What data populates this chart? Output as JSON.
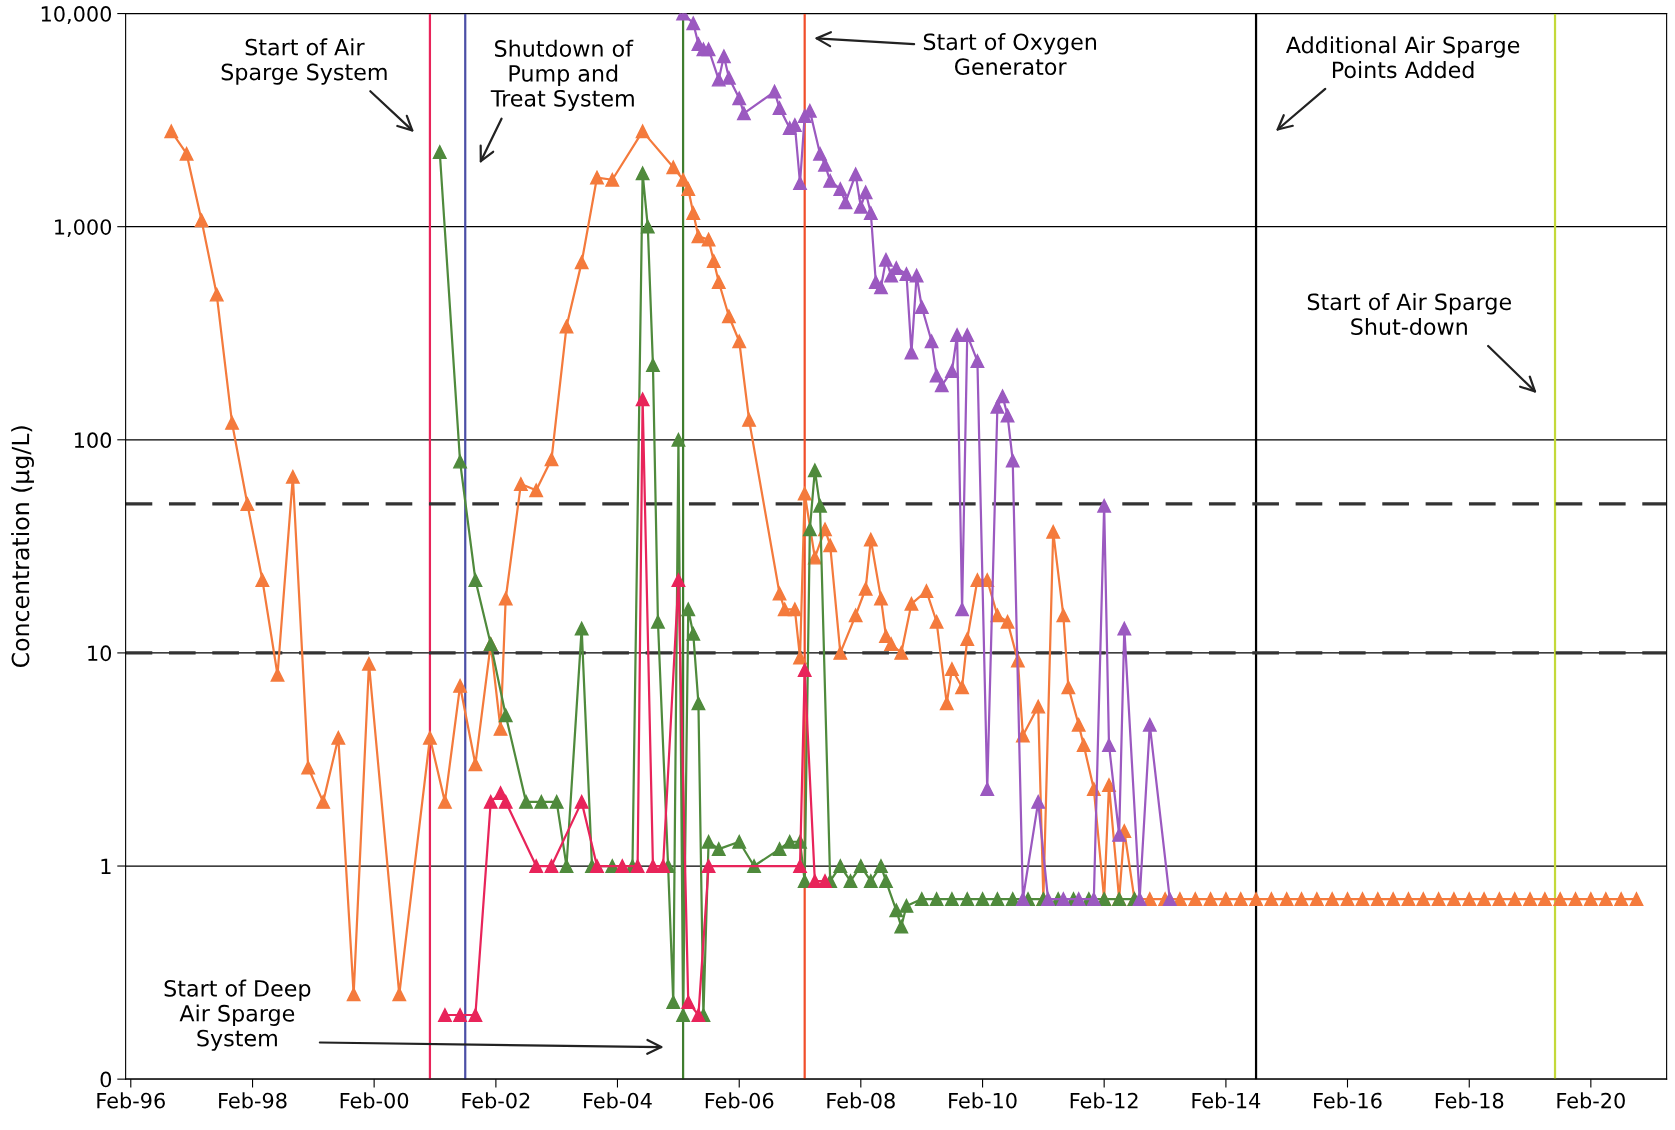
{
  "chart_data": {
    "type": "line",
    "ylabel": "Concentration (µg/L)",
    "log": "y",
    "grid": "y",
    "marker": "triangle",
    "line_style": "solid",
    "xlim": [
      "1996-01",
      "2021-05"
    ],
    "xticks": [
      {
        "value": "1996-02",
        "label": "Feb-96"
      },
      {
        "value": "1998-02",
        "label": "Feb-98"
      },
      {
        "value": "2000-02",
        "label": "Feb-00"
      },
      {
        "value": "2002-02",
        "label": "Feb-02"
      },
      {
        "value": "2004-02",
        "label": "Feb-04"
      },
      {
        "value": "2006-02",
        "label": "Feb-06"
      },
      {
        "value": "2008-02",
        "label": "Feb-08"
      },
      {
        "value": "2010-02",
        "label": "Feb-10"
      },
      {
        "value": "2012-02",
        "label": "Feb-12"
      },
      {
        "value": "2014-02",
        "label": "Feb-14"
      },
      {
        "value": "2016-02",
        "label": "Feb-16"
      },
      {
        "value": "2018-02",
        "label": "Feb-18"
      },
      {
        "value": "2020-02",
        "label": "Feb-20"
      }
    ],
    "ylim": [
      0.1,
      10000
    ],
    "yticks": [
      {
        "value": 0.1,
        "label": "0"
      },
      1,
      10,
      100,
      {
        "value": 1000,
        "label": "1,000"
      },
      {
        "value": 10000,
        "label": "10,000"
      }
    ],
    "series": [
      {
        "color": "#f47a3c",
        "x": [
          "1996-10",
          "1997-01",
          "1997-04",
          "1997-07",
          "1997-10",
          "1998-01",
          "1998-04",
          "1998-07",
          "1998-10",
          "1999-01",
          "1999-04",
          "1999-07",
          "1999-10",
          "2000-01",
          "2000-07",
          "2001-01",
          "2001-04",
          "2001-07",
          "2001-10",
          "2002-01",
          "2002-03",
          "2002-04",
          "2002-07",
          "2002-10",
          "2003-01",
          "2003-04",
          "2003-07",
          "2003-10",
          "2004-01",
          "2004-07",
          "2005-01",
          "2005-03",
          "2005-04",
          "2005-05",
          "2005-06",
          "2005-08",
          "2005-09",
          "2005-10",
          "2005-12",
          "2006-02",
          "2006-04",
          "2006-10",
          "2006-11",
          "2007-01",
          "2007-02",
          "2007-03",
          "2007-05",
          "2007-07",
          "2007-08",
          "2007-10",
          "2008-01",
          "2008-03",
          "2008-04",
          "2008-06",
          "2008-07",
          "2008-08",
          "2008-10",
          "2008-12",
          "2009-03",
          "2009-05",
          "2009-07",
          "2009-08",
          "2009-10",
          "2009-11",
          "2010-01",
          "2010-03",
          "2010-05",
          "2010-07",
          "2010-09",
          "2010-10",
          "2011-01",
          "2011-02",
          "2011-04",
          "2011-06",
          "2011-07",
          "2011-09",
          "2011-10",
          "2011-12",
          "2012-02",
          "2012-03",
          "2012-05",
          "2012-06",
          "2012-08",
          "2012-11",
          "2013-02",
          "2013-05",
          "2013-08",
          "2013-11",
          "2014-02",
          "2014-05",
          "2014-08",
          "2014-11",
          "2015-02",
          "2015-05",
          "2015-08",
          "2015-11",
          "2016-02",
          "2016-05",
          "2016-08",
          "2016-11",
          "2017-02",
          "2017-05",
          "2017-08",
          "2017-11",
          "2018-02",
          "2018-05",
          "2018-08",
          "2018-11",
          "2019-02",
          "2019-05",
          "2019-08",
          "2019-11",
          "2020-02",
          "2020-05",
          "2020-08",
          "2020-11"
        ],
        "values": [
          2800,
          2200,
          1070,
          480,
          120,
          50,
          22,
          7.9,
          67,
          2.9,
          2.0,
          4.0,
          0.25,
          8.9,
          0.25,
          4.0,
          2.0,
          7.0,
          3.0,
          11,
          4.4,
          18,
          62,
          58,
          81,
          340,
          680,
          1700,
          1660,
          2800,
          1900,
          1660,
          1500,
          1160,
          900,
          870,
          690,
          550,
          380,
          290,
          124,
          19,
          16,
          16,
          9.5,
          56,
          28,
          38,
          32,
          10,
          15,
          20,
          34,
          18,
          12,
          11,
          10,
          17,
          19.5,
          14,
          5.8,
          8.4,
          6.9,
          11.6,
          22,
          22,
          15,
          14,
          9.2,
          4.1,
          5.6,
          0.7,
          37,
          15,
          6.9,
          4.6,
          3.7,
          2.3,
          0.7,
          2.4,
          0.7,
          1.46,
          0.7,
          0.7,
          0.7,
          0.7,
          0.7,
          0.7,
          0.7,
          0.7,
          0.7,
          0.7,
          0.7,
          0.7,
          0.7,
          0.7,
          0.7,
          0.7,
          0.7,
          0.7,
          0.7,
          0.7,
          0.7,
          0.7,
          0.7,
          0.7,
          0.7,
          0.7,
          0.7,
          0.7,
          0.7,
          0.7,
          0.7,
          0.7,
          0.7,
          0.7
        ]
      },
      {
        "color": "#4f8a3c",
        "x": [
          "2001-03",
          "2001-07",
          "2001-10",
          "2002-01",
          "2002-04",
          "2002-08",
          "2002-11",
          "2003-02",
          "2003-04",
          "2003-07",
          "2003-09",
          "2004-01",
          "2004-05",
          "2004-07",
          "2004-08",
          "2004-09",
          "2004-10",
          "2004-12",
          "2005-01",
          "2005-02",
          "2005-03",
          "2005-04",
          "2005-05",
          "2005-06",
          "2005-07",
          "2005-08",
          "2005-10",
          "2006-02",
          "2006-05",
          "2006-10",
          "2006-12",
          "2007-02",
          "2007-03",
          "2007-04",
          "2007-05",
          "2007-06",
          "2007-08",
          "2007-10",
          "2007-12",
          "2008-02",
          "2008-04",
          "2008-06",
          "2008-07",
          "2008-09",
          "2008-10",
          "2008-11",
          "2009-02",
          "2009-05",
          "2009-08",
          "2009-11",
          "2010-02",
          "2010-05",
          "2010-08",
          "2010-11",
          "2011-02",
          "2011-05",
          "2011-08",
          "2011-11",
          "2012-02",
          "2012-05",
          "2012-08"
        ],
        "values": [
          2240,
          79,
          22,
          11,
          5.1,
          2.0,
          2.0,
          2.0,
          1.0,
          13,
          1.0,
          1.0,
          1.0,
          1780,
          1000,
          224,
          14,
          1.0,
          0.23,
          100,
          0.2,
          16,
          12.3,
          5.8,
          0.2,
          1.3,
          1.2,
          1.3,
          1.0,
          1.2,
          1.3,
          1.3,
          0.85,
          38,
          72,
          49,
          0.85,
          1.0,
          0.85,
          1.0,
          0.85,
          1.0,
          0.85,
          0.62,
          0.52,
          0.65,
          0.7,
          0.7,
          0.7,
          0.7,
          0.7,
          0.7,
          0.7,
          0.7,
          0.7,
          0.7,
          0.7,
          0.7,
          0.7,
          0.7,
          0.7
        ]
      },
      {
        "color": "#e8245a",
        "x": [
          "2001-04",
          "2001-07",
          "2001-10",
          "2002-01",
          "2002-03",
          "2002-04",
          "2002-10",
          "2003-01",
          "2003-07",
          "2003-10",
          "2004-03",
          "2004-06",
          "2004-07",
          "2004-09",
          "2004-11",
          "2005-02",
          "2005-04",
          "2005-06",
          "2005-08",
          "2007-02",
          "2007-03",
          "2007-05",
          "2007-07"
        ],
        "values": [
          0.2,
          0.2,
          0.2,
          2.0,
          2.2,
          2.0,
          1.0,
          1.0,
          2.0,
          1.0,
          1.0,
          1.0,
          155,
          1.0,
          1.0,
          22,
          0.23,
          0.2,
          1.0,
          1.0,
          8.3,
          0.85,
          0.85
        ]
      },
      {
        "color": "#9b59c0",
        "x": [
          "2005-03",
          "2005-05",
          "2005-06",
          "2005-07",
          "2005-08",
          "2005-10",
          "2005-11",
          "2005-12",
          "2006-02",
          "2006-03",
          "2006-09",
          "2006-10",
          "2006-12",
          "2007-01",
          "2007-02",
          "2007-03",
          "2007-04",
          "2007-06",
          "2007-07",
          "2007-08",
          "2007-10",
          "2007-11",
          "2008-01",
          "2008-02",
          "2008-03",
          "2008-04",
          "2008-05",
          "2008-06",
          "2008-07",
          "2008-08",
          "2008-09",
          "2008-11",
          "2008-12",
          "2009-01",
          "2009-02",
          "2009-04",
          "2009-05",
          "2009-06",
          "2009-08",
          "2009-09",
          "2009-10",
          "2009-11",
          "2010-01",
          "2010-03",
          "2010-05",
          "2010-06",
          "2010-07",
          "2010-08",
          "2010-10",
          "2011-01",
          "2011-03",
          "2011-06",
          "2011-09",
          "2011-12",
          "2012-02",
          "2012-03",
          "2012-05",
          "2012-06",
          "2012-09",
          "2012-11",
          "2013-03"
        ],
        "values": [
          10000,
          9000,
          7200,
          6800,
          6800,
          4900,
          6300,
          5000,
          4000,
          3400,
          4300,
          3600,
          2900,
          3000,
          1600,
          3300,
          3500,
          2200,
          1950,
          1640,
          1500,
          1300,
          1760,
          1240,
          1450,
          1160,
          550,
          520,
          700,
          590,
          640,
          600,
          257,
          590,
          420,
          290,
          200,
          180,
          210,
          310,
          16,
          310,
          234,
          2.3,
          143,
          160,
          130,
          80,
          0.7,
          2.0,
          0.7,
          0.7,
          0.7,
          0.7,
          49,
          3.7,
          1.4,
          13,
          0.7,
          4.6,
          0.7
        ]
      }
    ],
    "ref_lines": [
      {
        "axis": "x",
        "value": "2001-01",
        "color": "#e8245a"
      },
      {
        "axis": "x",
        "value": "2001-08",
        "color": "#4b4fa6"
      },
      {
        "axis": "x",
        "value": "2005-03",
        "color": "#3f7d2e"
      },
      {
        "axis": "x",
        "value": "2007-03",
        "color": "#f04e2a"
      },
      {
        "axis": "x",
        "value": "2014-08",
        "color": "#000000"
      },
      {
        "axis": "x",
        "value": "2019-07",
        "color": "#c4d93a"
      },
      {
        "axis": "y",
        "value": 50,
        "color": "#333333",
        "line_style": "dashed"
      },
      {
        "axis": "y",
        "value": 10,
        "color": "#333333",
        "line_style": "dashed"
      }
    ],
    "annotations": [
      "Start of Air\nSparge System",
      "Shutdown of\nPump and\nTreat System",
      "Start of Oxygen\nGenerator",
      "Additional Air Sparge\nPoints Added",
      "Start of Air Sparge\nShut-down",
      "Start of Deep\nAir Sparge\nSystem"
    ]
  }
}
